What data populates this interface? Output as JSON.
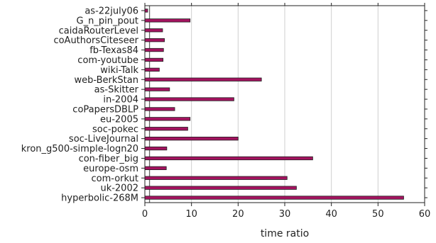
{
  "chart_data": {
    "type": "bar",
    "orientation": "horizontal",
    "title": "",
    "xlabel": "time ratio",
    "ylabel": "",
    "xlim": [
      0,
      60
    ],
    "xticks": [
      0,
      10,
      20,
      30,
      40,
      50,
      60
    ],
    "grid": "vertical",
    "reference_line_x": 1,
    "bar_color": "#a3135f",
    "categories": [
      "as-22july06",
      "G_n_pin_pout",
      "caidaRouterLevel",
      "coAuthorsCiteseer",
      "fb-Texas84",
      "com-youtube",
      "wiki-Talk",
      "web-BerkStan",
      "as-Skitter",
      "in-2004",
      "coPapersDBLP",
      "eu-2005",
      "soc-pokec",
      "soc-LiveJournal",
      "kron_g500-simple-logn20",
      "con-fiber_big",
      "europe-osm",
      "com-orkut",
      "uk-2002",
      "hyperbolic-268M"
    ],
    "values": [
      0.6,
      9.7,
      3.8,
      4.2,
      4.0,
      3.9,
      3.1,
      25.0,
      5.3,
      19.1,
      6.4,
      9.7,
      9.2,
      20.0,
      4.7,
      36.0,
      4.6,
      30.5,
      32.5,
      55.5
    ]
  }
}
